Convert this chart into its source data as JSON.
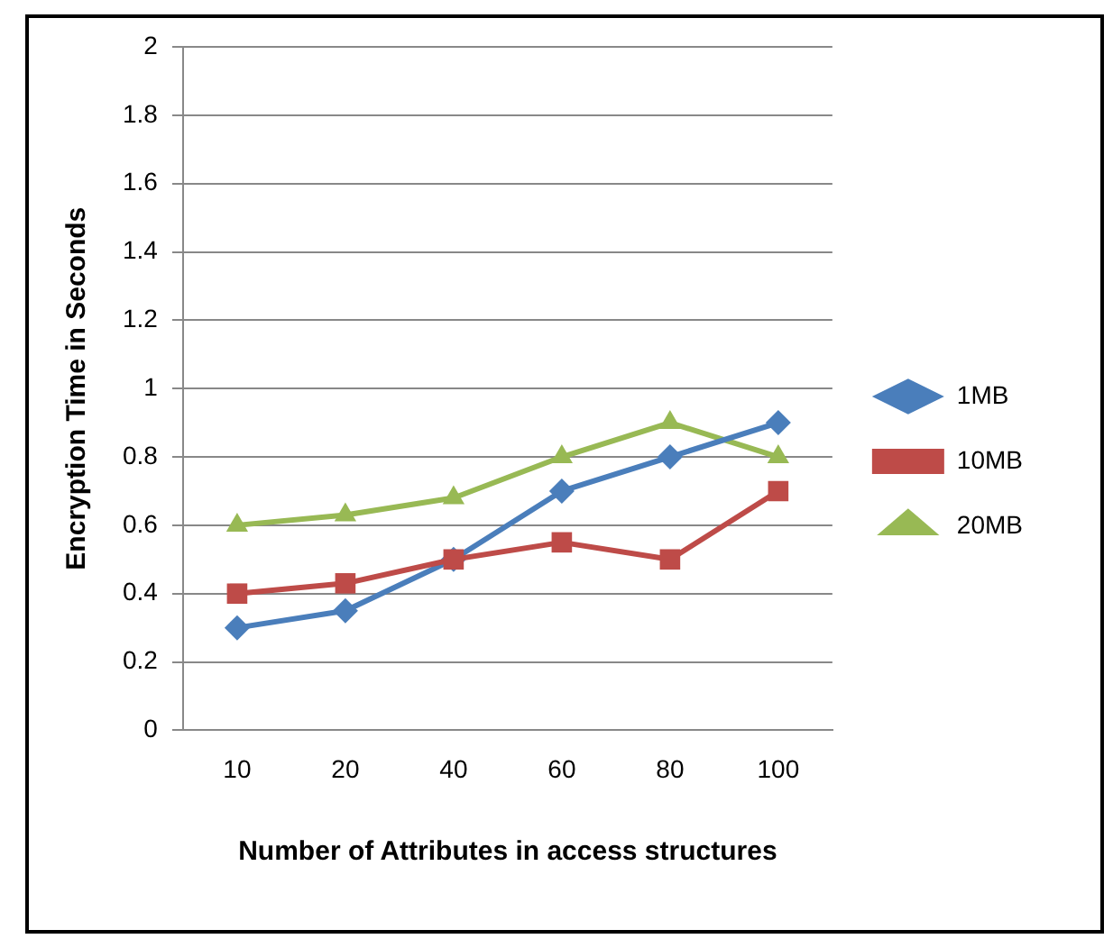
{
  "chart_data": {
    "type": "line",
    "xlabel": "Number of Attributes in access structures",
    "ylabel": "Encryption Time in Seconds",
    "categories": [
      "10",
      "20",
      "40",
      "60",
      "80",
      "100"
    ],
    "series": [
      {
        "name": "1MB",
        "color": "#4a7ebb",
        "marker": "diamond",
        "values": [
          0.3,
          0.35,
          0.5,
          0.7,
          0.8,
          0.9
        ]
      },
      {
        "name": "10MB",
        "color": "#be4b48",
        "marker": "square",
        "values": [
          0.4,
          0.43,
          0.5,
          0.55,
          0.5,
          0.7
        ]
      },
      {
        "name": "20MB",
        "color": "#98b954",
        "marker": "triangle",
        "values": [
          0.6,
          0.63,
          0.68,
          0.8,
          0.9,
          0.8
        ]
      }
    ],
    "ylim": [
      0,
      2
    ],
    "yticks": [
      0,
      0.2,
      0.4,
      0.6,
      0.8,
      1,
      1.2,
      1.4,
      1.6,
      1.8,
      2
    ],
    "grid": "y",
    "legend": "right"
  }
}
